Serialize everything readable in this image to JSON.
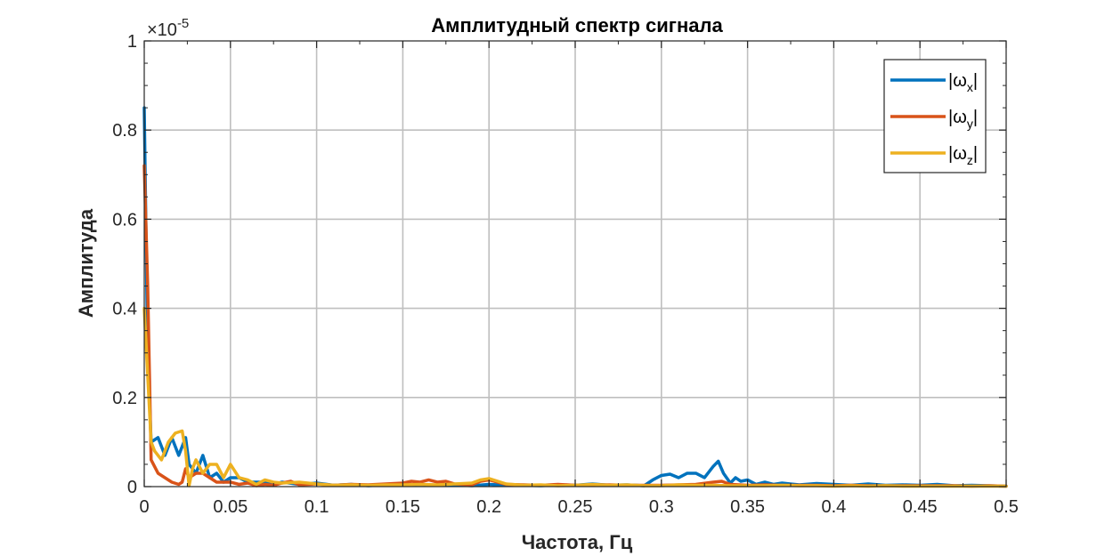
{
  "chart_data": {
    "type": "line",
    "title": "Амплитудный спектр сигнала",
    "xlabel": "Частота, Гц",
    "ylabel": "Амплитуда",
    "y_exponent": "×10",
    "y_exponent_power": "-5",
    "y_scale_factor": 1e-05,
    "xlim": [
      0,
      0.5
    ],
    "ylim": [
      0,
      1
    ],
    "x_ticks": [
      0,
      0.05,
      0.1,
      0.15,
      0.2,
      0.25,
      0.3,
      0.35,
      0.4,
      0.45,
      0.5
    ],
    "x_tick_labels": [
      "0",
      "0.05",
      "0.1",
      "0.15",
      "0.2",
      "0.25",
      "0.3",
      "0.35",
      "0.4",
      "0.45",
      "0.5"
    ],
    "y_ticks": [
      0,
      0.2,
      0.4,
      0.6,
      0.8,
      1
    ],
    "y_tick_labels": [
      "0",
      "0.2",
      "0.4",
      "0.6",
      "0.8",
      "1"
    ],
    "grid": true,
    "legend_position": "top-right",
    "series": [
      {
        "name": "|ω_x|",
        "label_main": "|ω",
        "label_sub": "x",
        "label_close": "|",
        "color": "#0072BD",
        "x": [
          0,
          0.002,
          0.004,
          0.008,
          0.012,
          0.016,
          0.02,
          0.024,
          0.026,
          0.03,
          0.034,
          0.038,
          0.042,
          0.046,
          0.05,
          0.055,
          0.06,
          0.065,
          0.07,
          0.075,
          0.08,
          0.09,
          0.1,
          0.11,
          0.12,
          0.13,
          0.14,
          0.15,
          0.16,
          0.17,
          0.18,
          0.19,
          0.2,
          0.21,
          0.22,
          0.23,
          0.24,
          0.25,
          0.26,
          0.27,
          0.28,
          0.29,
          0.295,
          0.3,
          0.305,
          0.31,
          0.315,
          0.32,
          0.325,
          0.33,
          0.333,
          0.336,
          0.34,
          0.343,
          0.346,
          0.35,
          0.355,
          0.36,
          0.365,
          0.37,
          0.38,
          0.39,
          0.4,
          0.41,
          0.42,
          0.43,
          0.44,
          0.45,
          0.46,
          0.47,
          0.48,
          0.49,
          0.5
        ],
        "y": [
          0.85,
          0.3,
          0.1,
          0.11,
          0.07,
          0.11,
          0.07,
          0.11,
          0.05,
          0.03,
          0.07,
          0.02,
          0.03,
          0.01,
          0.02,
          0.02,
          0.01,
          0.01,
          0.01,
          0.005,
          0.01,
          0.005,
          0.008,
          0.003,
          0.005,
          0.002,
          0.004,
          0.003,
          0.005,
          0.003,
          0.004,
          0.002,
          0.005,
          0.003,
          0.003,
          0.002,
          0.004,
          0.003,
          0.006,
          0.003,
          0.004,
          0.002,
          0.015,
          0.025,
          0.028,
          0.02,
          0.03,
          0.03,
          0.02,
          0.045,
          0.057,
          0.03,
          0.008,
          0.02,
          0.012,
          0.015,
          0.005,
          0.01,
          0.005,
          0.008,
          0.004,
          0.007,
          0.005,
          0.003,
          0.006,
          0.003,
          0.004,
          0.003,
          0.005,
          0.002,
          0.003,
          0.002,
          0.001
        ]
      },
      {
        "name": "|ω_y|",
        "label_main": "|ω",
        "label_sub": "y",
        "label_close": "|",
        "color": "#D95319",
        "x": [
          0,
          0.002,
          0.004,
          0.008,
          0.012,
          0.016,
          0.02,
          0.022,
          0.024,
          0.026,
          0.03,
          0.034,
          0.038,
          0.042,
          0.046,
          0.05,
          0.055,
          0.06,
          0.065,
          0.07,
          0.075,
          0.08,
          0.085,
          0.09,
          0.1,
          0.11,
          0.12,
          0.13,
          0.14,
          0.15,
          0.155,
          0.16,
          0.165,
          0.17,
          0.175,
          0.18,
          0.19,
          0.195,
          0.2,
          0.21,
          0.22,
          0.23,
          0.24,
          0.25,
          0.26,
          0.27,
          0.28,
          0.29,
          0.3,
          0.31,
          0.32,
          0.33,
          0.335,
          0.34,
          0.35,
          0.36,
          0.37,
          0.38,
          0.39,
          0.4,
          0.41,
          0.42,
          0.43,
          0.44,
          0.45,
          0.46,
          0.47,
          0.48,
          0.49,
          0.5
        ],
        "y": [
          0.72,
          0.45,
          0.06,
          0.03,
          0.02,
          0.01,
          0.005,
          0.01,
          0.04,
          0.02,
          0.03,
          0.03,
          0.02,
          0.01,
          0.01,
          0.01,
          0.005,
          0.008,
          0.002,
          0.005,
          0.003,
          0.008,
          0.012,
          0.004,
          0.006,
          0.003,
          0.005,
          0.004,
          0.006,
          0.008,
          0.012,
          0.01,
          0.015,
          0.01,
          0.012,
          0.006,
          0.004,
          0.012,
          0.015,
          0.005,
          0.004,
          0.003,
          0.005,
          0.003,
          0.004,
          0.004,
          0.003,
          0.003,
          0.003,
          0.004,
          0.005,
          0.01,
          0.012,
          0.005,
          0.003,
          0.004,
          0.003,
          0.003,
          0.003,
          0.002,
          0.003,
          0.002,
          0.002,
          0.002,
          0.002,
          0.002,
          0.002,
          0.001,
          0.002,
          0.001
        ]
      },
      {
        "name": "|ω_z|",
        "label_main": "|ω",
        "label_sub": "z",
        "label_close": "|",
        "color": "#EDB120",
        "x": [
          0,
          0.002,
          0.004,
          0.006,
          0.01,
          0.014,
          0.018,
          0.022,
          0.024,
          0.026,
          0.028,
          0.03,
          0.034,
          0.038,
          0.042,
          0.046,
          0.05,
          0.055,
          0.06,
          0.065,
          0.07,
          0.075,
          0.08,
          0.09,
          0.1,
          0.11,
          0.12,
          0.13,
          0.14,
          0.15,
          0.16,
          0.17,
          0.18,
          0.19,
          0.195,
          0.2,
          0.21,
          0.22,
          0.23,
          0.24,
          0.25,
          0.26,
          0.27,
          0.28,
          0.29,
          0.3,
          0.31,
          0.32,
          0.33,
          0.34,
          0.35,
          0.36,
          0.37,
          0.38,
          0.39,
          0.4,
          0.41,
          0.42,
          0.43,
          0.44,
          0.45,
          0.46,
          0.47,
          0.48,
          0.49,
          0.5
        ],
        "y": [
          0.4,
          0.25,
          0.1,
          0.08,
          0.06,
          0.1,
          0.12,
          0.125,
          0.08,
          0.002,
          0.04,
          0.06,
          0.03,
          0.05,
          0.05,
          0.02,
          0.05,
          0.02,
          0.015,
          0.005,
          0.015,
          0.01,
          0.008,
          0.01,
          0.006,
          0.003,
          0.004,
          0.003,
          0.004,
          0.004,
          0.005,
          0.004,
          0.006,
          0.008,
          0.015,
          0.018,
          0.006,
          0.003,
          0.004,
          0.002,
          0.003,
          0.005,
          0.003,
          0.004,
          0.002,
          0.002,
          0.004,
          0.003,
          0.003,
          0.002,
          0.002,
          0.002,
          0.003,
          0.002,
          0.002,
          0.001,
          0.002,
          0.001,
          0.002,
          0.001,
          0.001,
          0.001,
          0.001,
          0.001,
          0.001,
          0.001
        ]
      }
    ]
  }
}
